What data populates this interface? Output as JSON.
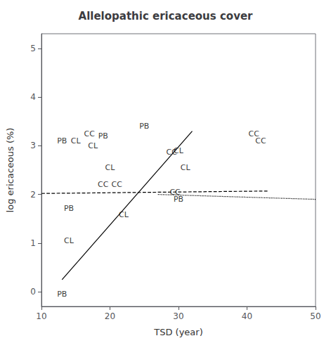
{
  "chart_data": {
    "type": "scatter",
    "title": "Allelopathic ericaceous cover",
    "xlabel": "TSD (year)",
    "ylabel": "log ericaceous (%)",
    "xlim": [
      10,
      50
    ],
    "ylim": [
      -0.3,
      5.3
    ],
    "xticks": [
      10,
      20,
      30,
      40,
      50
    ],
    "yticks": [
      0,
      1,
      2,
      3,
      4,
      5
    ],
    "grid": false,
    "series": [
      {
        "type": "scatter",
        "marker": "text",
        "color": "#000000",
        "x": [
          13,
          15,
          17,
          19,
          17.5,
          25,
          20,
          19,
          21,
          14,
          22,
          14,
          13,
          29,
          30,
          31,
          29.5,
          30,
          41,
          42
        ],
        "values": [
          3.1,
          3.1,
          3.25,
          3.2,
          3.0,
          3.4,
          2.55,
          2.2,
          2.2,
          1.72,
          1.58,
          1.05,
          -0.05,
          2.87,
          2.9,
          2.55,
          2.05,
          1.9,
          3.25,
          3.1
        ],
        "labels": [
          "PB",
          "CL",
          "CC",
          "PB",
          "CL",
          "PB",
          "CL",
          "CC",
          "CC",
          "PB",
          "CL",
          "CL",
          "PB",
          "CC",
          "CL",
          "CL",
          "CC",
          "PB",
          "CC",
          "CC"
        ]
      },
      {
        "type": "line",
        "line_style": "solid",
        "color": "#000000",
        "x": [
          13,
          32
        ],
        "values": [
          0.25,
          3.3
        ]
      },
      {
        "type": "line",
        "line_style": "dashed",
        "color": "#000000",
        "x": [
          10,
          43
        ],
        "values": [
          2.02,
          2.07
        ]
      },
      {
        "type": "line",
        "line_style": "dotted",
        "color": "#000000",
        "x": [
          27,
          50
        ],
        "values": [
          2.0,
          1.9
        ]
      }
    ]
  }
}
